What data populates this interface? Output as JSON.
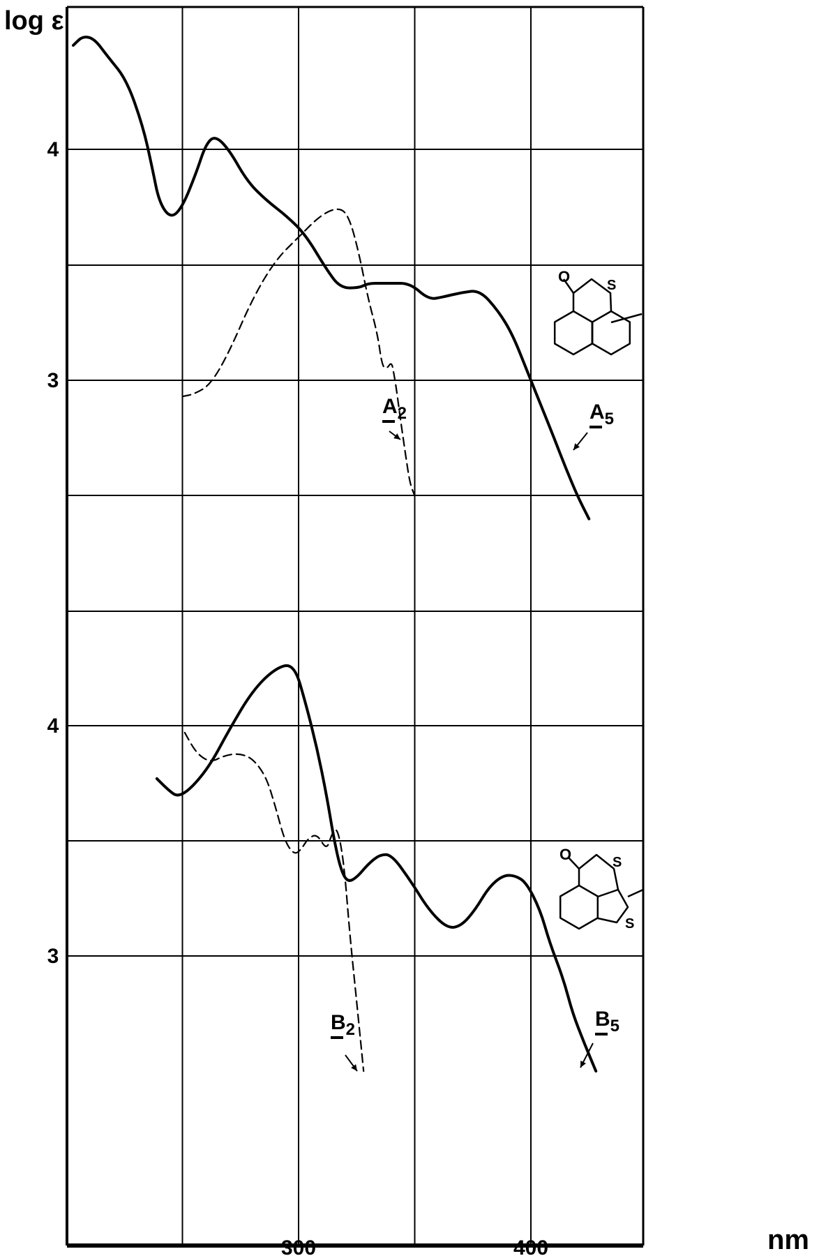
{
  "chart_data": {
    "type": "line",
    "x_unit_label": "nm",
    "y_label": "log ε",
    "x_ticks": [
      300,
      400
    ],
    "xlim": [
      200,
      450
    ],
    "grid": true,
    "panels": [
      {
        "id": "upper",
        "y_ticks": [
          4,
          3
        ],
        "ylim": [
          2.5,
          4.6
        ],
        "series": [
          {
            "name": "A5",
            "style": "solid",
            "x": [
              203,
              207,
              212,
              218,
              226,
              233,
              237,
              240,
              245,
              250,
              256,
              260,
              264,
              270,
              278,
              286,
              295,
              303,
              312,
              318,
              326,
              330,
              336,
              340,
              348,
              356,
              362,
              370,
              378,
              386,
              392,
              398,
              404,
              410,
              415,
              420,
              425
            ],
            "y": [
              4.45,
              4.49,
              4.48,
              4.4,
              4.3,
              4.1,
              3.92,
              3.77,
              3.7,
              3.75,
              3.9,
              4.02,
              4.06,
              4.0,
              3.86,
              3.78,
              3.71,
              3.63,
              3.48,
              3.4,
              3.4,
              3.42,
              3.42,
              3.42,
              3.42,
              3.35,
              3.36,
              3.38,
              3.39,
              3.3,
              3.2,
              3.05,
              2.9,
              2.75,
              2.62,
              2.5,
              2.4
            ]
          },
          {
            "name": "A2",
            "style": "dashed",
            "x": [
              250,
              255,
              262,
              270,
              280,
              290,
              300,
              310,
              318,
              322,
              326,
              330,
              334,
              336,
              338,
              340,
              341,
              342,
              344,
              346,
              348,
              350
            ],
            "y": [
              2.93,
              2.94,
              2.98,
              3.12,
              3.35,
              3.52,
              3.62,
              3.72,
              3.75,
              3.7,
              3.55,
              3.35,
              3.2,
              3.06,
              3.05,
              3.08,
              3.03,
              2.97,
              2.82,
              2.68,
              2.55,
              2.5
            ]
          }
        ],
        "annotations": [
          {
            "label_main": "A",
            "label_sub": "2",
            "near": "A2 dashed curve"
          },
          {
            "label_main": "A",
            "label_sub": "5",
            "near": "A5 solid curve"
          }
        ],
        "structure_labels": [
          "O",
          "S"
        ]
      },
      {
        "id": "lower",
        "y_ticks": [
          4,
          3
        ],
        "ylim": [
          2.4,
          4.6
        ],
        "series": [
          {
            "name": "B5",
            "style": "solid",
            "x": [
              239,
              244,
              248,
              254,
              262,
              270,
              280,
              290,
              298,
              303,
              308,
              312,
              315,
              318,
              321,
              325,
              330,
              335,
              340,
              348,
              356,
              364,
              370,
              376,
              382,
              388,
              393,
              398,
              404,
              408,
              414,
              418,
              423,
              428
            ],
            "y": [
              3.77,
              3.72,
              3.69,
              3.73,
              3.83,
              3.98,
              4.15,
              4.25,
              4.27,
              4.1,
              3.9,
              3.7,
              3.52,
              3.38,
              3.32,
              3.34,
              3.4,
              3.44,
              3.44,
              3.33,
              3.2,
              3.12,
              3.13,
              3.2,
              3.3,
              3.35,
              3.35,
              3.32,
              3.2,
              3.06,
              2.9,
              2.75,
              2.62,
              2.5
            ]
          },
          {
            "name": "B2",
            "style": "dashed",
            "x": [
              251,
              256,
              262,
              268,
              274,
              280,
              286,
              290,
              294,
              298,
              301,
              304,
              308,
              312,
              314,
              316,
              318,
              320,
              322,
              324,
              326,
              328
            ],
            "y": [
              3.97,
              3.88,
              3.84,
              3.87,
              3.88,
              3.86,
              3.78,
              3.65,
              3.5,
              3.44,
              3.46,
              3.51,
              3.53,
              3.46,
              3.52,
              3.56,
              3.5,
              3.35,
              3.1,
              2.9,
              2.7,
              2.5
            ]
          }
        ],
        "annotations": [
          {
            "label_main": "B",
            "label_sub": "2",
            "near": "B2 dashed curve"
          },
          {
            "label_main": "B",
            "label_sub": "5",
            "near": "B5 solid curve"
          }
        ],
        "structure_labels": [
          "O",
          "S",
          "S"
        ]
      }
    ]
  }
}
